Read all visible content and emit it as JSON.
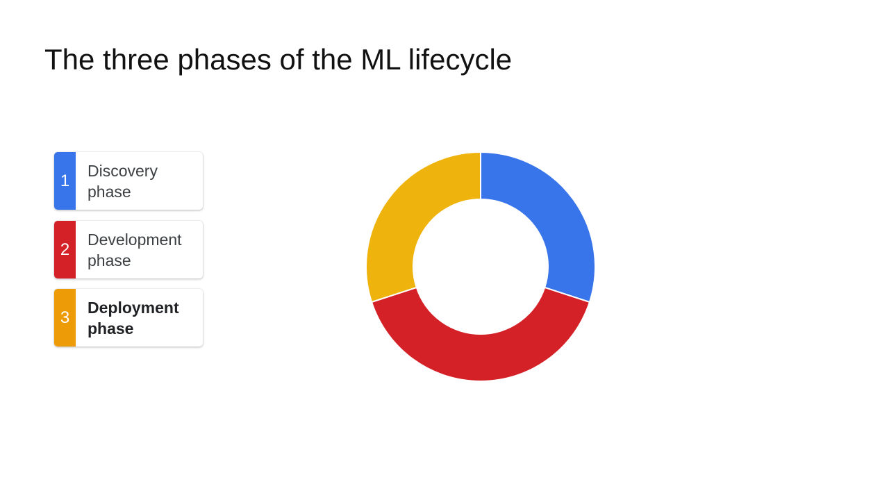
{
  "slide": {
    "title": "The three phases of the ML lifecycle"
  },
  "phases": [
    {
      "number": "1",
      "label": "Discovery\nphase",
      "color": "#3874ea",
      "emphasized": false
    },
    {
      "number": "2",
      "label": "Development\nphase",
      "color": "#d42027",
      "emphasized": false
    },
    {
      "number": "3",
      "label": "Deployment\nphase",
      "color": "#ed9c08",
      "emphasized": true
    }
  ],
  "chart_data": {
    "type": "pie",
    "style": "donut",
    "start": "top",
    "direction": "clockwise",
    "segments": [
      {
        "phase": "Discovery phase",
        "share": 0.3,
        "color": "#3874ea"
      },
      {
        "phase": "Development phase",
        "share": 0.4,
        "color": "#d42027"
      },
      {
        "phase": "Deployment phase",
        "share": 0.3,
        "color": "#efb30e"
      }
    ]
  }
}
